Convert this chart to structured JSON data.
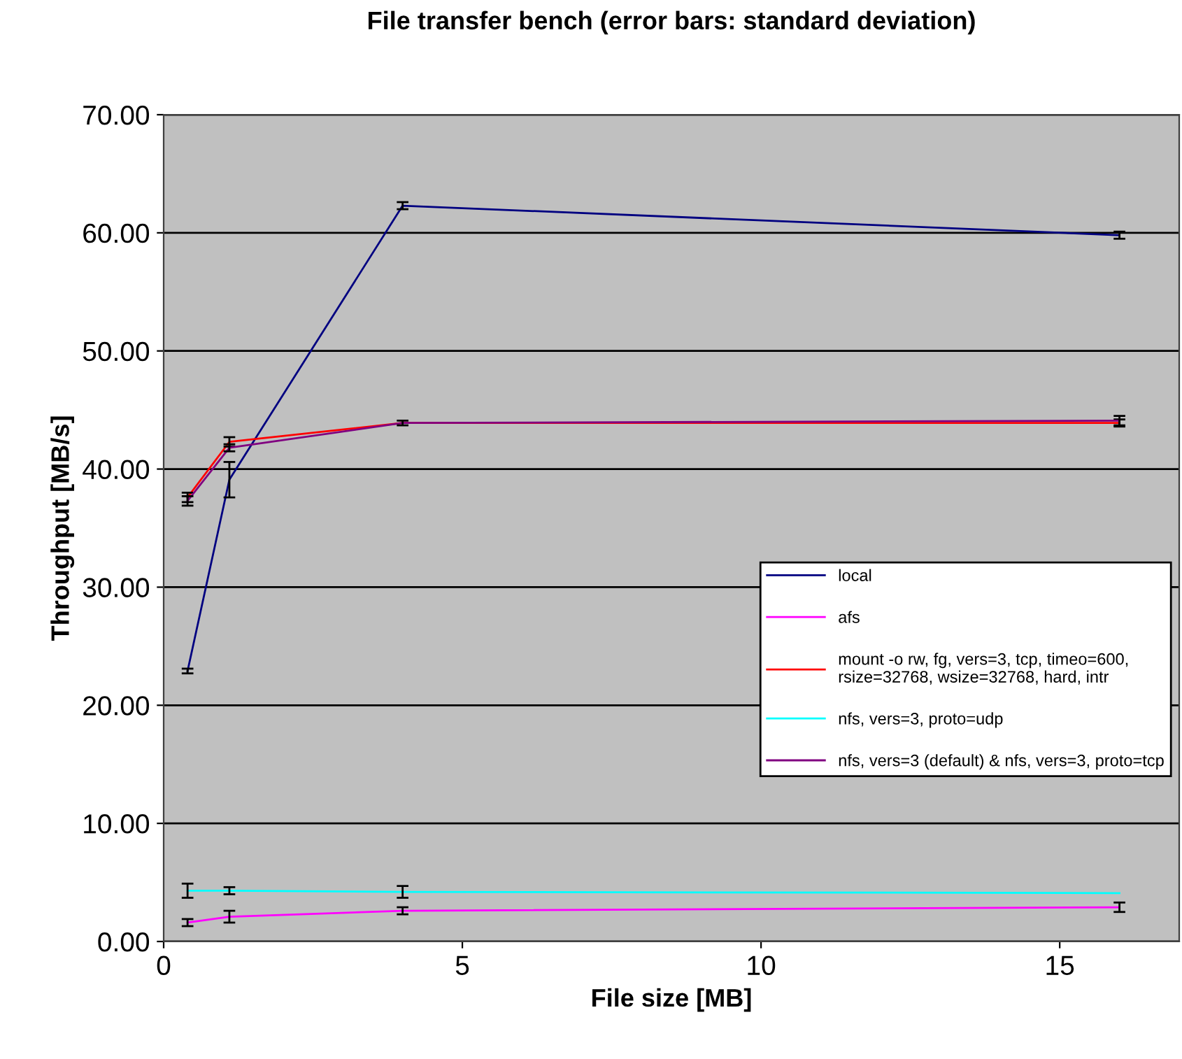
{
  "chart_data": {
    "type": "line",
    "title": "File transfer bench (error bars: standard deviation)",
    "xlabel": "File size [MB]",
    "ylabel": "Throughput [MB/s]",
    "x": [
      0.4,
      1.1,
      4,
      16
    ],
    "series": [
      {
        "name": "local",
        "color": "#000080",
        "values": [
          22.9,
          39.1,
          62.3,
          59.8
        ],
        "errors": [
          0.2,
          1.5,
          0.3,
          0.3
        ]
      },
      {
        "name": "afs",
        "color": "#ff00ff",
        "values": [
          1.6,
          2.1,
          2.6,
          2.9
        ],
        "errors": [
          0.3,
          0.5,
          0.3,
          0.4
        ]
      },
      {
        "name": "mount -o rw, fg, vers=3, tcp, timeo=600,\nrsize=32768, wsize=32768, hard, intr",
        "color": "#ff0000",
        "values": [
          37.6,
          42.3,
          43.9,
          43.9
        ],
        "errors": [
          0.4,
          0.4,
          null,
          0.3
        ]
      },
      {
        "name": "nfs, vers=3, proto=udp",
        "color": "#00ffff",
        "values": [
          4.3,
          4.3,
          4.2,
          4.1
        ],
        "errors": [
          0.6,
          0.3,
          0.5,
          null
        ]
      },
      {
        "name": "nfs, vers=3 (default) & nfs, vers=3, proto=tcp",
        "color": "#800080",
        "values": [
          37.3,
          41.8,
          43.9,
          44.1
        ],
        "errors": [
          0.4,
          0.3,
          0.2,
          0.4
        ]
      }
    ],
    "xlim": [
      0,
      17
    ],
    "xticks": [
      0,
      5,
      10,
      15
    ],
    "ylim": [
      0,
      70
    ],
    "yticks": [
      {
        "value": 0,
        "label": "0.00"
      },
      {
        "value": 10,
        "label": "10.00"
      },
      {
        "value": 20,
        "label": "20.00"
      },
      {
        "value": 30,
        "label": "30.00"
      },
      {
        "value": 40,
        "label": "40.00"
      },
      {
        "value": 50,
        "label": "50.00"
      },
      {
        "value": 60,
        "label": "60.00"
      },
      {
        "value": 70,
        "label": "70.00"
      }
    ],
    "grid": "y",
    "legend": "right",
    "marker": "none",
    "line_style": "solid"
  }
}
